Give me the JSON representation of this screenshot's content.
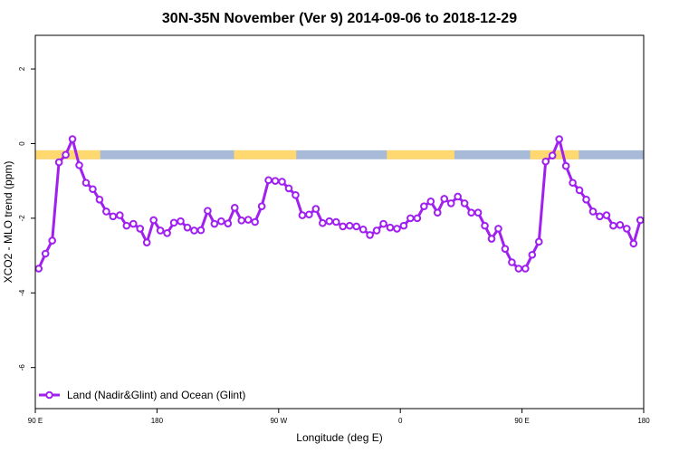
{
  "chart_data": {
    "type": "line",
    "title": "30N-35N November (Ver 9)   2014-09-06 to 2018-12-29",
    "xlabel": "Longitude (deg E)",
    "ylabel": "XCO2 - MLO trend (ppm)",
    "xlim": [
      0,
      450
    ],
    "ylim": [
      -7.1,
      2.9
    ],
    "x_ticks": [
      {
        "value": 0,
        "label": "90 E"
      },
      {
        "value": 90,
        "label": "180"
      },
      {
        "value": 180,
        "label": "90 W"
      },
      {
        "value": 270,
        "label": "0"
      },
      {
        "value": 360,
        "label": "90 E"
      },
      {
        "value": 450,
        "label": "180"
      }
    ],
    "y_ticks": [
      {
        "value": 2,
        "label": "2"
      },
      {
        "value": 0,
        "label": "0"
      },
      {
        "value": -2,
        "label": "-2"
      },
      {
        "value": -4,
        "label": "-4"
      },
      {
        "value": -6,
        "label": "-6"
      }
    ],
    "grid": false,
    "legend": {
      "position": "bottom-left",
      "entries": [
        "Land (Nadir&Glint) and Ocean (Glint)"
      ]
    },
    "series": [
      {
        "name": "Land (Nadir&Glint) and Ocean (Glint)",
        "color": "#a020f0",
        "x": [
          2.5,
          7.5,
          12.5,
          17.5,
          22.5,
          27.5,
          32.5,
          37.5,
          42.5,
          47.5,
          52.5,
          57.5,
          62.5,
          67.5,
          72.5,
          77.5,
          82.5,
          87.5,
          92.5,
          97.5,
          102.5,
          107.5,
          112.5,
          117.5,
          122.5,
          127.5,
          132.5,
          137.5,
          142.5,
          147.5,
          152.5,
          157.5,
          162.5,
          167.5,
          172.5,
          177.5,
          182.5,
          187.5,
          192.5,
          197.5,
          202.5,
          207.5,
          212.5,
          217.5,
          222.5,
          227.5,
          232.5,
          237.5,
          242.5,
          247.5,
          252.5,
          257.5,
          262.5,
          267.5,
          272.5,
          277.5,
          282.5,
          287.5,
          292.5,
          297.5,
          302.5,
          307.5,
          312.5,
          317.5,
          322.5,
          327.5,
          332.5,
          337.5,
          342.5,
          347.5,
          352.5,
          357.5,
          362.5,
          367.5,
          372.5,
          377.5,
          382.5,
          387.5,
          392.5,
          397.5,
          402.5,
          407.5,
          412.5,
          417.5,
          422.5,
          427.5,
          432.5,
          437.5,
          442.5,
          447.5
        ],
        "y": [
          -3.35,
          -2.95,
          -2.6,
          -0.5,
          -0.3,
          0.12,
          -0.58,
          -1.05,
          -1.22,
          -1.5,
          -1.82,
          -1.95,
          -1.92,
          -2.2,
          -2.15,
          -2.28,
          -2.65,
          -2.05,
          -2.33,
          -2.4,
          -2.12,
          -2.08,
          -2.25,
          -2.33,
          -2.32,
          -1.8,
          -2.15,
          -2.08,
          -2.14,
          -1.72,
          -2.06,
          -2.04,
          -2.1,
          -1.68,
          -0.98,
          -1.0,
          -1.02,
          -1.2,
          -1.38,
          -1.92,
          -1.9,
          -1.75,
          -2.13,
          -2.08,
          -2.1,
          -2.22,
          -2.2,
          -2.22,
          -2.3,
          -2.45,
          -2.33,
          -2.15,
          -2.25,
          -2.28,
          -2.2,
          -2.0,
          -2.0,
          -1.68,
          -1.55,
          -1.85,
          -1.48,
          -1.6,
          -1.42,
          -1.6,
          -1.85,
          -1.85,
          -2.2,
          -2.55,
          -2.28,
          -2.82,
          -3.18,
          -3.35,
          -3.35,
          -2.98,
          -2.63,
          -0.48,
          -0.32,
          0.12,
          -0.6,
          -1.05,
          -1.25,
          -1.5,
          -1.82,
          -1.95,
          -1.92,
          -2.2,
          -2.18,
          -2.28,
          -2.68,
          -2.05
        ]
      }
    ],
    "surface_band": {
      "y_top": -0.18,
      "y_bottom": -0.42,
      "land_color": "#ffd870",
      "ocean_color": "#a7bbd8",
      "land_segments": [
        [
          0,
          48
        ],
        [
          147,
          193
        ],
        [
          260,
          310
        ],
        [
          366,
          402
        ]
      ]
    }
  }
}
